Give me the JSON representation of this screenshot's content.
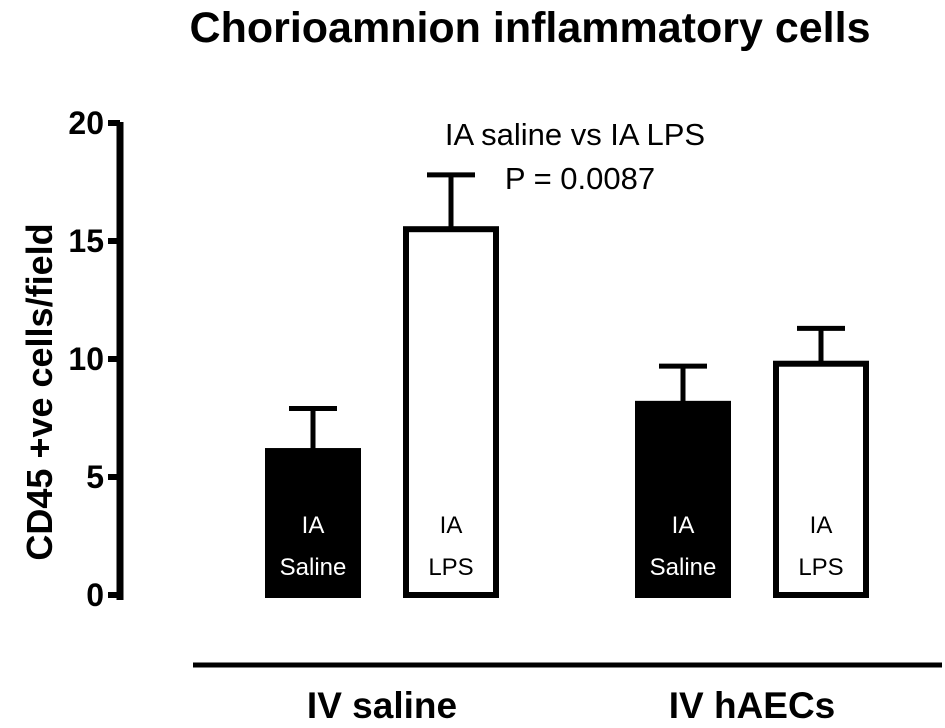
{
  "chart_data": {
    "type": "bar",
    "title": "Chorioamnion inflammatory cells",
    "ylabel": "CD45 +ve cells/field",
    "xlabel": "",
    "ylim": [
      0,
      20
    ],
    "yticks": [
      0,
      5,
      10,
      15,
      20
    ],
    "groups": [
      "IV saline",
      "IV hAECs"
    ],
    "bars": [
      {
        "group": "IV saline",
        "label_line1": "IA",
        "label_line2": "Saline",
        "value": 6.1,
        "error": 1.8,
        "fill": "#000000",
        "text_color": "#ffffff"
      },
      {
        "group": "IV saline",
        "label_line1": "IA",
        "label_line2": "LPS",
        "value": 15.5,
        "error": 2.3,
        "fill": "#ffffff",
        "text_color": "#000000"
      },
      {
        "group": "IV hAECs",
        "label_line1": "IA",
        "label_line2": "Saline",
        "value": 8.1,
        "error": 1.6,
        "fill": "#000000",
        "text_color": "#ffffff"
      },
      {
        "group": "IV hAECs",
        "label_line1": "IA",
        "label_line2": "LPS",
        "value": 9.8,
        "error": 1.5,
        "fill": "#ffffff",
        "text_color": "#000000"
      }
    ],
    "annotation": {
      "line1": "IA saline vs IA LPS",
      "line2": "P = 0.0087"
    },
    "grid": false,
    "legend": "none"
  }
}
